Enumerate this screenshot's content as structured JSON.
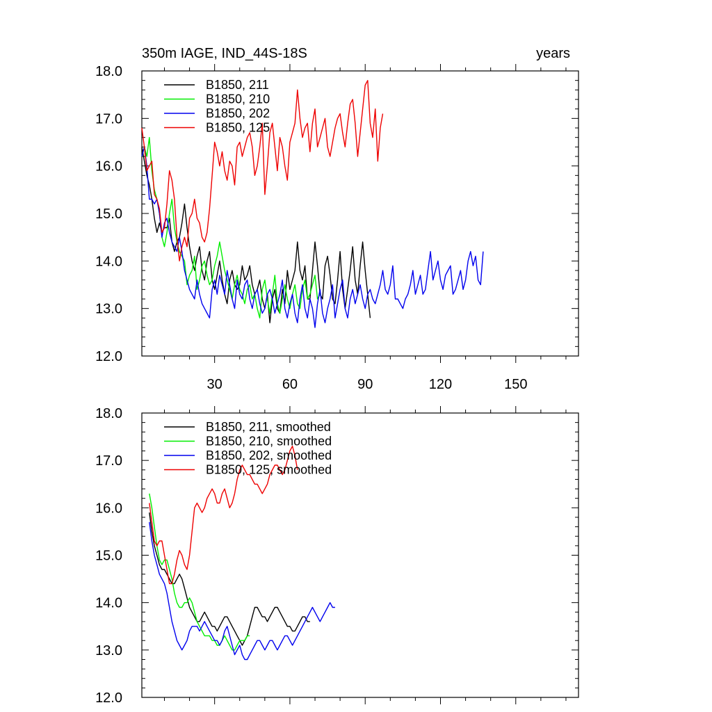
{
  "title_left": "350m IAGE, IND_44S-18S",
  "title_right": "years",
  "chart_data": [
    {
      "type": "line",
      "xlim": [
        1,
        175
      ],
      "ylim": [
        12.0,
        18.0
      ],
      "x_ticks": [
        30,
        60,
        90,
        120,
        150
      ],
      "x_tick_labels": [
        "30",
        "60",
        "90",
        "120",
        "150"
      ],
      "y_ticks": [
        12.0,
        13.0,
        14.0,
        15.0,
        16.0,
        17.0,
        18.0
      ],
      "y_tick_labels": [
        "12.0",
        "13.0",
        "14.0",
        "15.0",
        "16.0",
        "17.0",
        "18.0"
      ],
      "legend_position": "top-left",
      "series": [
        {
          "name": "B1850, 211",
          "color": "#000000",
          "x_start": 1,
          "values": [
            16.4,
            16.1,
            15.8,
            15.6,
            15.3,
            14.9,
            14.6,
            14.8,
            14.6,
            14.7,
            14.7,
            14.9,
            14.4,
            14.2,
            14.4,
            14.5,
            14.8,
            15.2,
            14.7,
            14.3,
            14.0,
            13.8,
            14.1,
            14.3,
            13.8,
            13.6,
            14.0,
            14.2,
            13.6,
            13.4,
            13.7,
            14.0,
            13.6,
            13.3,
            13.1,
            13.6,
            13.8,
            13.5,
            13.4,
            13.5,
            13.9,
            13.6,
            13.7,
            13.9,
            13.5,
            13.3,
            13.4,
            13.6,
            13.2,
            13.0,
            13.3,
            12.7,
            13.2,
            13.4,
            13.0,
            12.9,
            13.4,
            13.1,
            13.8,
            13.4,
            13.6,
            13.8,
            14.4,
            13.8,
            13.6,
            13.9,
            13.2,
            13.2,
            13.8,
            14.4,
            13.9,
            13.3,
            13.2,
            13.9,
            14.1,
            13.7,
            13.2,
            13.1,
            13.6,
            14.2,
            13.4,
            13.0,
            13.4,
            13.8,
            14.3,
            13.6,
            13.3,
            13.9,
            14.4,
            13.8,
            13.3,
            12.8
          ]
        },
        {
          "name": "B1850, 210",
          "color": "#00ee00",
          "x_start": 1,
          "values": [
            16.2,
            16.4,
            16.2,
            16.6,
            15.9,
            15.5,
            15.3,
            15.0,
            14.5,
            14.3,
            14.6,
            15.0,
            15.3,
            14.7,
            14.4,
            14.2,
            14.1,
            14.0,
            13.5,
            13.7,
            13.8,
            14.1,
            13.4,
            13.6,
            13.9,
            14.0,
            13.7,
            13.5,
            13.6,
            13.9,
            14.1,
            14.4,
            14.1,
            13.8,
            13.6,
            13.4,
            13.2,
            13.5,
            13.7,
            13.4,
            13.3,
            13.1,
            13.4,
            13.5,
            13.2,
            13.3,
            13.0,
            12.8,
            13.4,
            13.6,
            13.2,
            12.9,
            13.3,
            13.7,
            13.1,
            12.9,
            13.2,
            13.5,
            13.2,
            13.0,
            13.3,
            13.5,
            13.1,
            13.0,
            13.4,
            13.6,
            13.2,
            13.3,
            13.5,
            13.7,
            13.2,
            13.3
          ]
        },
        {
          "name": "B1850, 202",
          "color": "#0000ee",
          "x_start": 1,
          "values": [
            16.2,
            16.4,
            16.0,
            15.3,
            15.3,
            15.2,
            15.3,
            15.0,
            14.5,
            14.8,
            14.9,
            14.6,
            14.4,
            14.3,
            14.2,
            14.5,
            14.2,
            13.8,
            13.6,
            13.4,
            13.3,
            13.2,
            13.6,
            13.3,
            13.1,
            13.0,
            12.9,
            12.8,
            13.4,
            13.6,
            13.3,
            13.7,
            13.5,
            13.3,
            13.8,
            13.5,
            13.2,
            13.0,
            13.6,
            13.3,
            13.2,
            13.5,
            13.6,
            13.2,
            13.0,
            13.3,
            13.4,
            13.1,
            12.9,
            13.0,
            13.3,
            13.4,
            13.2,
            12.9,
            13.1,
            13.3,
            13.6,
            13.0,
            12.8,
            13.1,
            13.3,
            12.9,
            12.7,
            13.2,
            13.5,
            13.0,
            12.8,
            13.2,
            13.0,
            12.6,
            13.1,
            13.4,
            12.9,
            12.7,
            13.0,
            13.2,
            13.5,
            12.8,
            13.1,
            13.4,
            13.6,
            13.0,
            12.8,
            13.2,
            13.4,
            13.1,
            13.3,
            13.5,
            13.2,
            13.0,
            13.3,
            13.4,
            13.2,
            13.1,
            13.3,
            13.5,
            13.8,
            13.4,
            13.3,
            13.5,
            13.9,
            13.2,
            13.2,
            13.1,
            13.0,
            13.2,
            13.3,
            13.5,
            13.8,
            13.3,
            13.5,
            13.7,
            13.3,
            13.4,
            13.8,
            14.2,
            13.6,
            13.8,
            14.0,
            13.6,
            13.4,
            13.7,
            13.8,
            13.9,
            13.3,
            13.4,
            13.6,
            13.8,
            13.4,
            13.6,
            14.0,
            14.2,
            13.9,
            14.1,
            13.6,
            13.5,
            14.2
          ]
        },
        {
          "name": "B1850, 125",
          "color": "#ee0000",
          "x_start": 1,
          "values": [
            16.8,
            16.4,
            15.9,
            16.0,
            16.1,
            15.4,
            15.3,
            15.1,
            14.6,
            14.7,
            15.2,
            15.9,
            15.7,
            15.3,
            14.5,
            14.0,
            14.3,
            14.5,
            14.3,
            14.9,
            15.0,
            15.3,
            14.9,
            14.8,
            14.5,
            14.4,
            14.6,
            15.1,
            15.8,
            16.5,
            16.3,
            16.0,
            16.3,
            15.9,
            15.7,
            16.1,
            16.0,
            15.6,
            16.4,
            16.5,
            16.2,
            16.4,
            16.6,
            16.7,
            16.4,
            15.8,
            16.0,
            16.4,
            16.9,
            15.4,
            16.0,
            16.7,
            16.9,
            16.4,
            15.9,
            16.6,
            16.4,
            16.0,
            15.7,
            16.5,
            16.7,
            16.9,
            17.6,
            17.0,
            16.6,
            16.8,
            16.9,
            16.3,
            16.9,
            17.2,
            16.4,
            16.6,
            16.8,
            17.0,
            16.4,
            16.2,
            16.5,
            16.8,
            17.0,
            17.1,
            16.7,
            16.4,
            16.9,
            17.3,
            17.4,
            16.9,
            16.2,
            16.7,
            17.2,
            17.7,
            17.8,
            16.9,
            16.6,
            17.2,
            16.1,
            16.8,
            17.1
          ]
        }
      ]
    },
    {
      "type": "line",
      "xlim": [
        1,
        175
      ],
      "ylim": [
        12.0,
        18.0
      ],
      "y_ticks": [
        12.0,
        13.0,
        14.0,
        15.0,
        16.0,
        17.0,
        18.0
      ],
      "y_tick_labels": [
        "12.0",
        "13.0",
        "14.0",
        "15.0",
        "16.0",
        "17.0",
        "18.0"
      ],
      "x_ticks": [
        30,
        60,
        90,
        120,
        150
      ],
      "legend_position": "top-left",
      "series": [
        {
          "name": "B1850, 211, smoothed",
          "color": "#000000",
          "x_start": 4,
          "values": [
            15.9,
            15.5,
            15.2,
            15.0,
            14.8,
            14.7,
            14.7,
            14.6,
            14.5,
            14.4,
            14.4,
            14.5,
            14.6,
            14.5,
            14.3,
            14.1,
            13.9,
            13.8,
            13.7,
            13.6,
            13.6,
            13.7,
            13.8,
            13.7,
            13.6,
            13.5,
            13.5,
            13.4,
            13.5,
            13.6,
            13.7,
            13.7,
            13.6,
            13.5,
            13.4,
            13.3,
            13.2,
            13.1,
            13.2,
            13.3,
            13.5,
            13.7,
            13.9,
            13.9,
            13.8,
            13.7,
            13.7,
            13.6,
            13.7,
            13.8,
            13.9,
            13.9,
            13.8,
            13.7,
            13.6,
            13.5,
            13.5,
            13.4,
            13.4,
            13.5,
            13.6,
            13.7,
            13.7,
            13.6,
            13.6
          ]
        },
        {
          "name": "B1850, 210, smoothed",
          "color": "#00ee00",
          "x_start": 4,
          "values": [
            16.3,
            16.0,
            15.6,
            15.2,
            14.9,
            14.8,
            14.9,
            14.9,
            14.7,
            14.5,
            14.2,
            14.0,
            13.9,
            13.9,
            14.0,
            14.0,
            14.1,
            14.0,
            13.8,
            13.6,
            13.5,
            13.4,
            13.3,
            13.3,
            13.3,
            13.2,
            13.2,
            13.1,
            13.1,
            13.2,
            13.3,
            13.2,
            13.1,
            13.0,
            13.0,
            13.1,
            13.2,
            13.2,
            13.2,
            13.3,
            13.3
          ]
        },
        {
          "name": "B1850, 202, smoothed",
          "color": "#0000ee",
          "x_start": 4,
          "values": [
            15.7,
            15.3,
            15.0,
            14.8,
            14.6,
            14.5,
            14.4,
            14.2,
            13.9,
            13.6,
            13.4,
            13.2,
            13.1,
            13.0,
            13.1,
            13.2,
            13.4,
            13.5,
            13.5,
            13.5,
            13.4,
            13.5,
            13.6,
            13.5,
            13.4,
            13.3,
            13.2,
            13.2,
            13.1,
            13.2,
            13.4,
            13.5,
            13.3,
            13.1,
            12.9,
            13.0,
            13.1,
            12.9,
            12.8,
            12.8,
            12.9,
            13.0,
            13.1,
            13.2,
            13.2,
            13.1,
            13.0,
            13.1,
            13.2,
            13.2,
            13.1,
            13.0,
            13.1,
            13.2,
            13.3,
            13.3,
            13.2,
            13.1,
            13.2,
            13.3,
            13.4,
            13.5,
            13.6,
            13.7,
            13.8,
            13.9,
            13.8,
            13.7,
            13.6,
            13.7,
            13.8,
            13.9,
            14.0,
            13.9,
            13.9
          ]
        },
        {
          "name": "B1850, 125, smoothed",
          "color": "#ee0000",
          "x_start": 4,
          "values": [
            16.1,
            15.7,
            15.3,
            15.2,
            15.3,
            15.3,
            15.0,
            14.7,
            14.4,
            14.4,
            14.6,
            14.9,
            15.1,
            15.0,
            14.8,
            14.7,
            15.0,
            15.5,
            16.0,
            16.1,
            16.0,
            15.9,
            16.0,
            16.2,
            16.3,
            16.4,
            16.3,
            16.1,
            16.1,
            16.3,
            16.4,
            16.2,
            16.0,
            16.1,
            16.3,
            16.6,
            16.8,
            16.9,
            16.8,
            16.7,
            16.7,
            16.6,
            16.5,
            16.5,
            16.4,
            16.3,
            16.4,
            16.5,
            16.7,
            16.8,
            16.9,
            16.9,
            16.8,
            16.7,
            16.8,
            17.0,
            17.2,
            17.3,
            17.1,
            16.8
          ]
        }
      ]
    }
  ]
}
